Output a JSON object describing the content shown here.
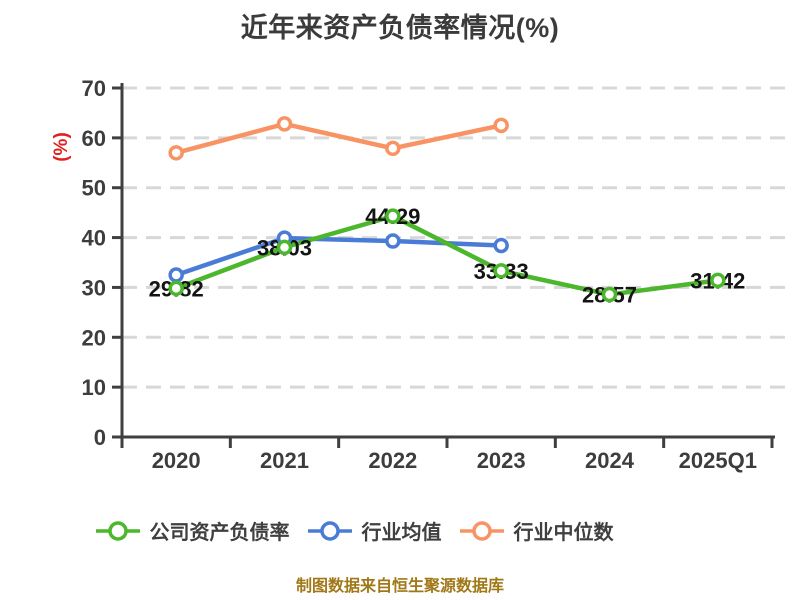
{
  "header": {
    "title": "近年来资产负债率情况(%)"
  },
  "chart_data": {
    "type": "line",
    "title": "近年来资产负债率情况(%)",
    "ylabel": "(%)",
    "xlabel": "",
    "categories": [
      "2020",
      "2021",
      "2022",
      "2023",
      "2024",
      "2025Q1"
    ],
    "series": [
      {
        "name": "公司资产负债率",
        "color": "#4cb72d",
        "show_point_labels": true,
        "values": [
          29.82,
          38.03,
          44.29,
          33.33,
          28.57,
          31.42
        ]
      },
      {
        "name": "行业均值",
        "color": "#4a7cd6",
        "show_point_labels": false,
        "values": [
          32.5,
          39.9,
          39.3,
          38.4,
          null,
          null
        ]
      },
      {
        "name": "行业中位数",
        "color": "#f89464",
        "show_point_labels": false,
        "values": [
          57.0,
          62.8,
          57.9,
          62.5,
          null,
          null
        ]
      }
    ],
    "ylim": [
      0,
      70
    ],
    "ytick_step": 10,
    "grid": "horizontal-dashed",
    "legend_position": "bottom"
  },
  "footer": {
    "credit": "制图数据来自恒生聚源数据库"
  },
  "colors": {
    "background": "#ffffff",
    "axis": "#3f3f3f",
    "grid": "#d8d8d8",
    "tick_text": "#3d3d3d",
    "title_text": "#3b3b3b",
    "ylabel_text": "#e02121",
    "point_label_text": "#141414",
    "legend_text": "#3f3f3f",
    "footer_text": "#a07818"
  }
}
